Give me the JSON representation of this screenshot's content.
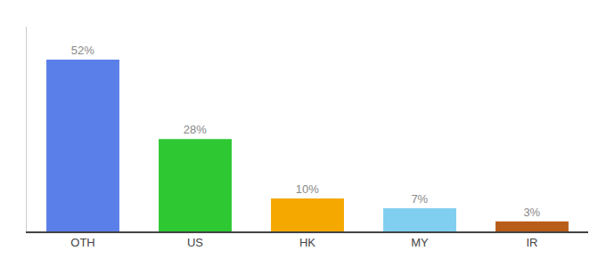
{
  "chart_data": {
    "type": "bar",
    "categories": [
      "OTH",
      "US",
      "HK",
      "MY",
      "IR"
    ],
    "values": [
      52,
      28,
      10,
      7,
      3
    ],
    "value_labels": [
      "52%",
      "28%",
      "10%",
      "7%",
      "3%"
    ],
    "colors": [
      "#5b7fe8",
      "#2dc832",
      "#f5a800",
      "#80cef0",
      "#b85c1a"
    ],
    "ylim": [
      0,
      62
    ],
    "data_labels": true,
    "tick_labels": "x",
    "grid": false
  }
}
